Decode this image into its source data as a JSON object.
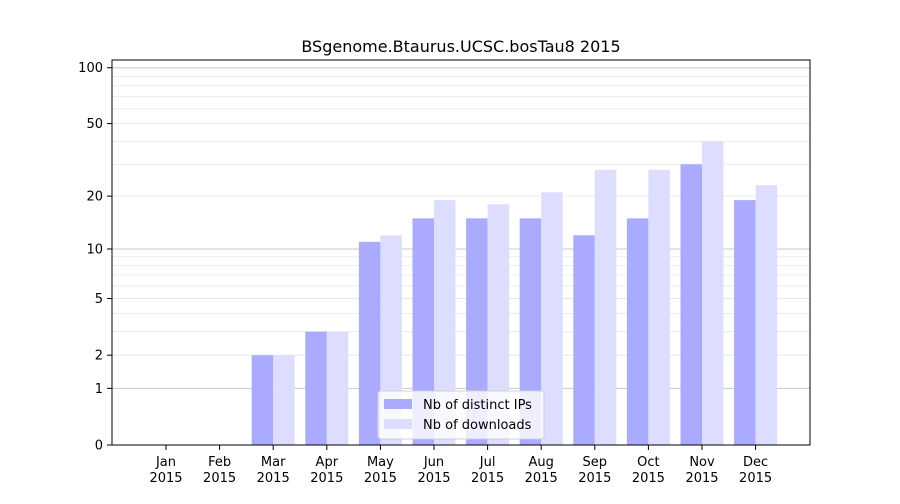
{
  "chart_data": {
    "type": "bar",
    "title": "BSgenome.Btaurus.UCSC.bosTau8 2015",
    "xlabel": "",
    "ylabel": "",
    "yscale": "log1p",
    "yticks": [
      0,
      1,
      2,
      5,
      10,
      20,
      50,
      100
    ],
    "ytick_labels": [
      "0",
      "1",
      "2",
      "5",
      "10",
      "20",
      "50",
      "100"
    ],
    "ylim": [
      0,
      110
    ],
    "categories": [
      {
        "month": "Jan",
        "year": "2015"
      },
      {
        "month": "Feb",
        "year": "2015"
      },
      {
        "month": "Mar",
        "year": "2015"
      },
      {
        "month": "Apr",
        "year": "2015"
      },
      {
        "month": "May",
        "year": "2015"
      },
      {
        "month": "Jun",
        "year": "2015"
      },
      {
        "month": "Jul",
        "year": "2015"
      },
      {
        "month": "Aug",
        "year": "2015"
      },
      {
        "month": "Sep",
        "year": "2015"
      },
      {
        "month": "Oct",
        "year": "2015"
      },
      {
        "month": "Nov",
        "year": "2015"
      },
      {
        "month": "Dec",
        "year": "2015"
      }
    ],
    "series": [
      {
        "name": "Nb of distinct IPs",
        "color": "#aaaaff",
        "values": [
          0,
          0,
          2,
          3,
          11,
          15,
          15,
          15,
          12,
          15,
          30,
          19
        ]
      },
      {
        "name": "Nb of downloads",
        "color": "#ddddff",
        "values": [
          0,
          0,
          2,
          3,
          12,
          19,
          18,
          21,
          28,
          28,
          40,
          23
        ]
      }
    ],
    "grid": true,
    "legend_position": "bottom-center"
  }
}
